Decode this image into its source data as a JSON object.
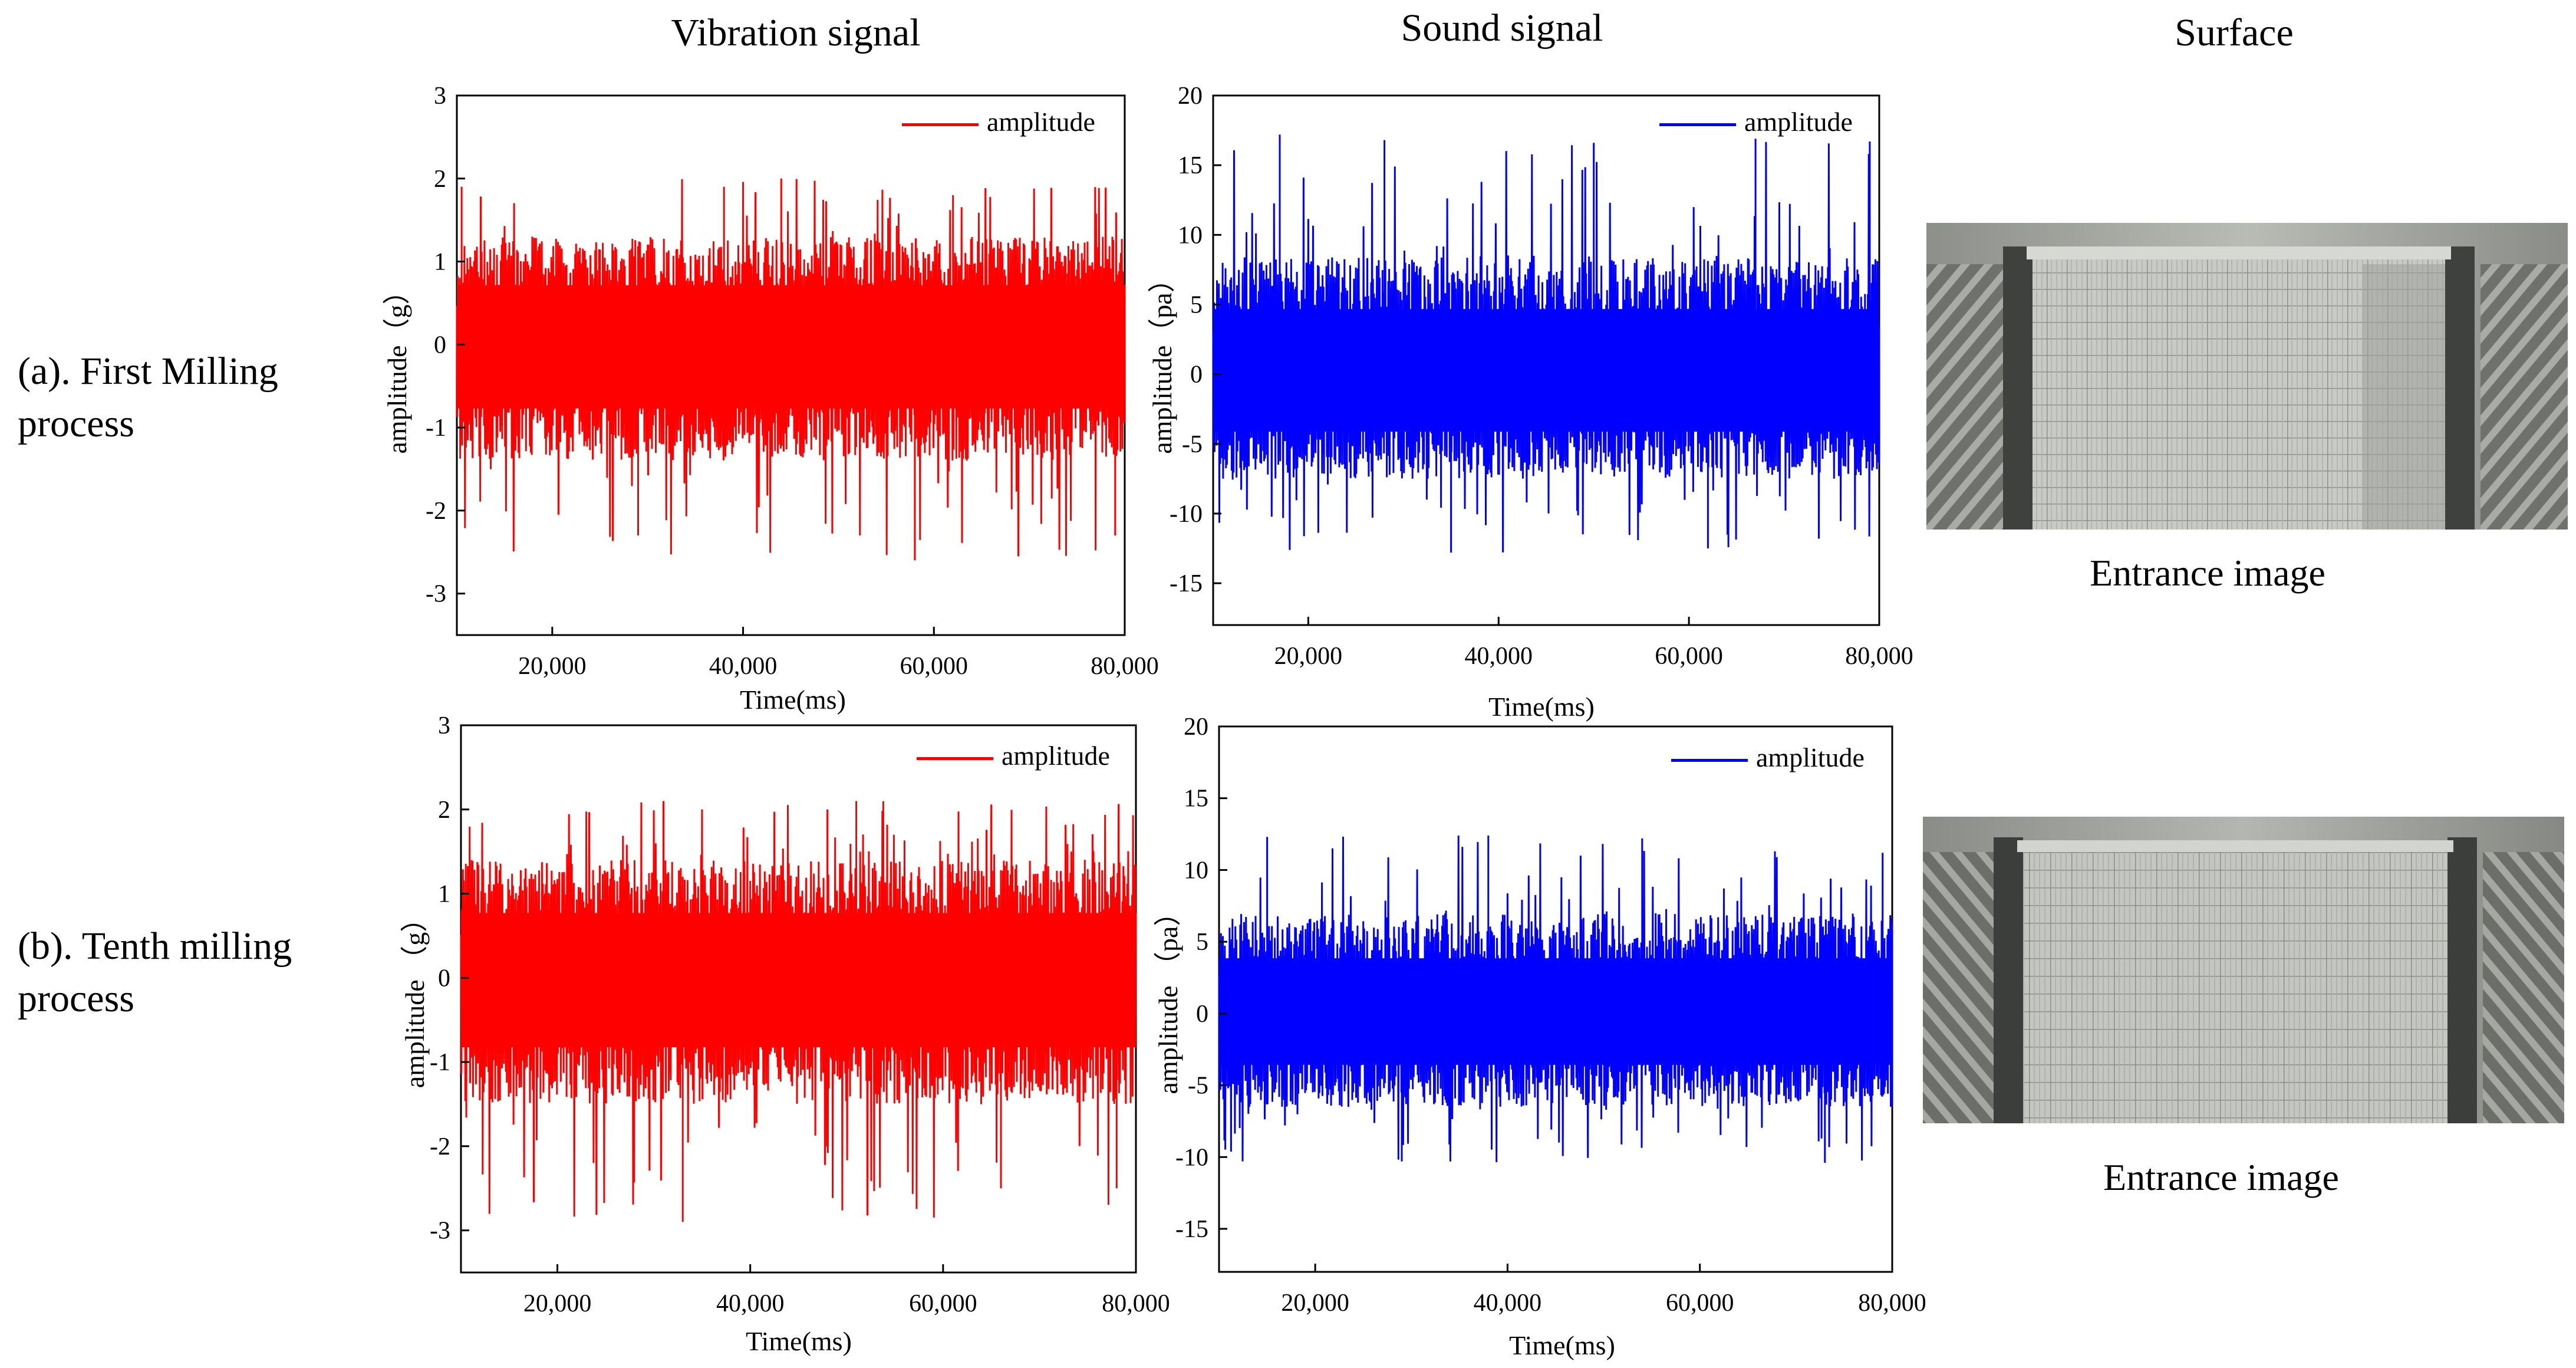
{
  "columns": {
    "vibration": "Vibration signal",
    "sound": "Sound signal",
    "surface": "Surface"
  },
  "rows": {
    "a": [
      "(a). First Milling",
      "process"
    ],
    "b": [
      "(b). Tenth milling",
      "process"
    ]
  },
  "colors": {
    "vibration": "#ff0000",
    "sound": "#0000ff"
  },
  "surface": {
    "caption_a": "Entrance image",
    "caption_b": "Entrance image"
  },
  "chart_data": [
    {
      "id": "vib_a",
      "type": "line",
      "signal": "vibration",
      "title": "",
      "xlabel": "Time(ms)",
      "ylabel": "amplitude（g）",
      "legend": "amplitude",
      "xlim": [
        10000,
        80000
      ],
      "ylim": [
        -3.5,
        3
      ],
      "xticks": [
        20000,
        40000,
        60000,
        80000
      ],
      "xtick_labels": [
        "20,000",
        "40,000",
        "60,000",
        "80,000"
      ],
      "yticks": [
        -3,
        -2,
        -1,
        0,
        1,
        2,
        3
      ],
      "envelope": {
        "typical_max": 1.3,
        "typical_min": -1.4,
        "peak_max": 2.0,
        "peak_min": -2.6
      },
      "peaks": [
        [
          10500,
          1.9
        ],
        [
          29000,
          -2.3
        ],
        [
          38000,
          1.9
        ],
        [
          44000,
          2.0
        ],
        [
          58000,
          -2.6
        ],
        [
          62000,
          1.8
        ],
        [
          79000,
          -2.3
        ]
      ]
    },
    {
      "id": "snd_a",
      "type": "line",
      "signal": "sound",
      "title": "",
      "xlabel": "Time(ms)",
      "ylabel": "amplitude（pa）",
      "legend": "amplitude",
      "xlim": [
        10000,
        80000
      ],
      "ylim": [
        -18,
        20
      ],
      "xticks": [
        20000,
        40000,
        60000,
        80000
      ],
      "xtick_labels": [
        "20,000",
        "40,000",
        "60,000",
        "80,000"
      ],
      "yticks": [
        -15,
        -10,
        -5,
        0,
        5,
        10,
        15,
        20
      ],
      "envelope": {
        "typical_max": 8.5,
        "typical_min": -7.5,
        "peak_max": 17,
        "peak_min": -13
      },
      "peaks": [
        [
          17000,
          17.2
        ],
        [
          28000,
          16.8
        ],
        [
          50000,
          16.6
        ],
        [
          67000,
          16.9
        ],
        [
          79000,
          16.7
        ],
        [
          35000,
          -12.8
        ],
        [
          62000,
          -12.5
        ]
      ]
    },
    {
      "id": "vib_b",
      "type": "line",
      "signal": "vibration",
      "title": "",
      "xlabel": "Time(ms)",
      "ylabel": "amplitude （g）",
      "legend": "amplitude",
      "xlim": [
        10000,
        80000
      ],
      "ylim": [
        -3.5,
        3
      ],
      "xticks": [
        20000,
        40000,
        60000,
        80000
      ],
      "xtick_labels": [
        "20,000",
        "40,000",
        "60,000",
        "80,000"
      ],
      "yticks": [
        -3,
        -2,
        -1,
        0,
        1,
        2,
        3
      ],
      "envelope": {
        "typical_max": 1.4,
        "typical_min": -1.5,
        "peak_max": 2.1,
        "peak_min": -2.9
      },
      "peaks": [
        [
          33000,
          -2.9
        ],
        [
          31000,
          2.1
        ],
        [
          51000,
          2.1
        ],
        [
          66000,
          -2.5
        ],
        [
          78000,
          -2.5
        ],
        [
          48000,
          2.0
        ]
      ]
    },
    {
      "id": "snd_b",
      "type": "line",
      "signal": "sound",
      "title": "",
      "xlabel": "Time(ms)",
      "ylabel": "amplitude （pa）",
      "legend": "amplitude",
      "xlim": [
        10000,
        80000
      ],
      "ylim": [
        -18,
        20
      ],
      "xticks": [
        20000,
        40000,
        60000,
        80000
      ],
      "xtick_labels": [
        "20,000",
        "40,000",
        "60,000",
        "80,000"
      ],
      "yticks": [
        -15,
        -10,
        -5,
        0,
        5,
        10,
        15,
        20
      ],
      "envelope": {
        "typical_max": 7.0,
        "typical_min": -6.5,
        "peak_max": 12.5,
        "peak_min": -10.5
      },
      "peaks": [
        [
          15000,
          12.3
        ],
        [
          38000,
          12.4
        ],
        [
          54000,
          12.2
        ],
        [
          79000,
          11.2
        ],
        [
          29000,
          -10.3
        ],
        [
          73000,
          -10.4
        ]
      ]
    }
  ]
}
